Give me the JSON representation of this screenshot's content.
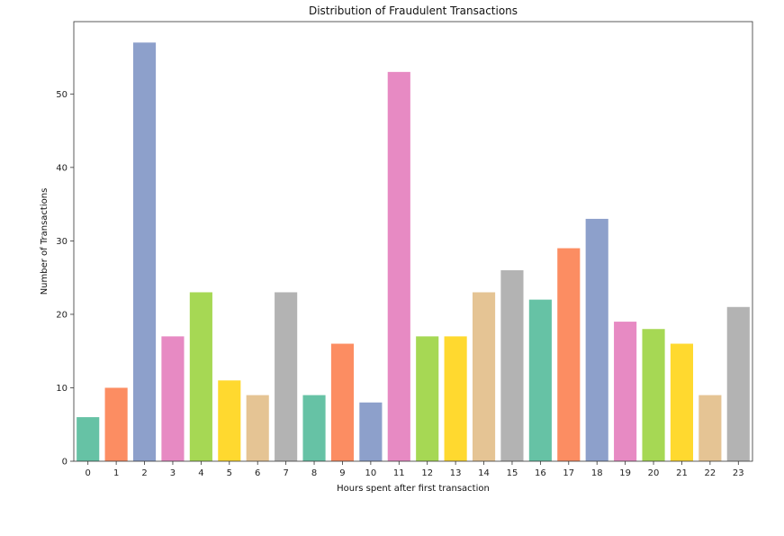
{
  "chart_data": {
    "type": "bar",
    "title": "Distribution of Fraudulent Transactions",
    "xlabel": "Hours spent after first transaction",
    "ylabel": "Number of Transactions",
    "categories": [
      "0",
      "1",
      "2",
      "3",
      "4",
      "5",
      "6",
      "7",
      "8",
      "9",
      "10",
      "11",
      "12",
      "13",
      "14",
      "15",
      "16",
      "17",
      "18",
      "19",
      "20",
      "21",
      "22",
      "23"
    ],
    "values": [
      6,
      10,
      57,
      17,
      23,
      11,
      9,
      23,
      9,
      16,
      8,
      53,
      17,
      17,
      23,
      26,
      22,
      29,
      33,
      19,
      18,
      16,
      9,
      21
    ],
    "ylim": [
      0,
      59.85
    ],
    "yticks": [
      0,
      10,
      20,
      30,
      40,
      50
    ],
    "grid": false,
    "legend": "none",
    "palette": [
      "#66c2a5",
      "#fc8d62",
      "#8da0cb",
      "#e78ac3",
      "#a6d854",
      "#ffd92f",
      "#e5c494",
      "#b3b3b3"
    ]
  }
}
